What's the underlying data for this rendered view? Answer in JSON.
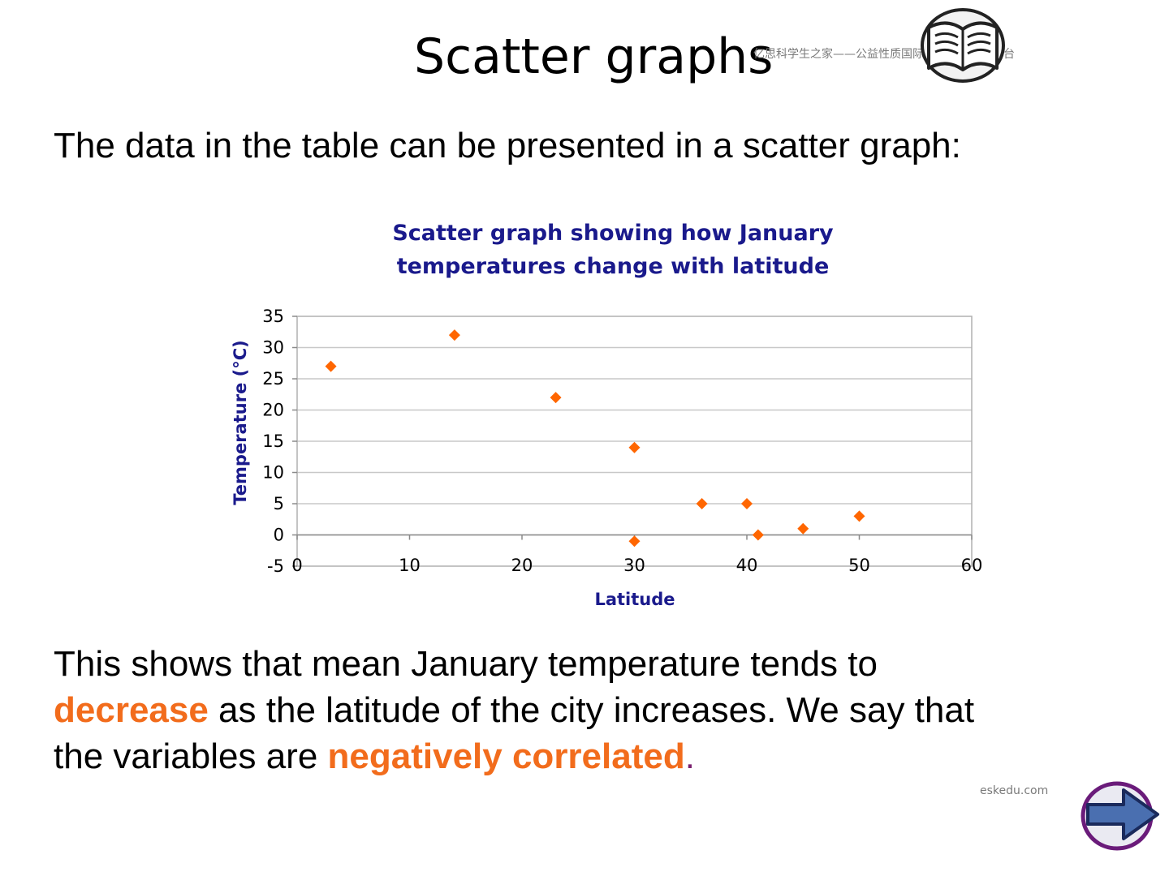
{
  "slide": {
    "title": "Scatter graphs",
    "intro": "The data in the table can be presented in a scatter graph:",
    "summary": {
      "line1": "This shows that mean January temperature tends to",
      "hl1": "decrease",
      "line2": " as the latitude of the city increases. We say that",
      "line3": "the variables are ",
      "hl2": "negatively correlated",
      "period": "."
    },
    "watermark": "亿思科学生之家——公益性质国际教育信息服务平台",
    "site": "eskedu.com"
  },
  "colors": {
    "accent": "#f26c1c",
    "chart_title": "#1a1a8c",
    "period": "#7a1f6e",
    "arrow": "#4a6fb0",
    "arrow_ring": "#6a1b7a"
  },
  "icons": {
    "book": "book-icon",
    "next": "right-arrow-icon"
  },
  "chart_data": {
    "type": "scatter",
    "title_line1": "Scatter graph showing how January",
    "title_line2": "temperatures change with latitude",
    "xlabel": "Latitude",
    "ylabel": "Temperature (°C)",
    "xlim": [
      0,
      60
    ],
    "ylim": [
      -5,
      35
    ],
    "xticks": [
      0,
      10,
      20,
      30,
      40,
      50,
      60
    ],
    "yticks": [
      -5,
      0,
      5,
      10,
      15,
      20,
      25,
      30,
      35
    ],
    "grid": "horizontal",
    "marker_color": "#ff6600",
    "points": [
      {
        "x": 3,
        "y": 27
      },
      {
        "x": 14,
        "y": 32
      },
      {
        "x": 23,
        "y": 22
      },
      {
        "x": 30,
        "y": 14
      },
      {
        "x": 30,
        "y": -1
      },
      {
        "x": 36,
        "y": 5
      },
      {
        "x": 40,
        "y": 5
      },
      {
        "x": 41,
        "y": 0
      },
      {
        "x": 45,
        "y": 1
      },
      {
        "x": 50,
        "y": 3
      }
    ]
  }
}
